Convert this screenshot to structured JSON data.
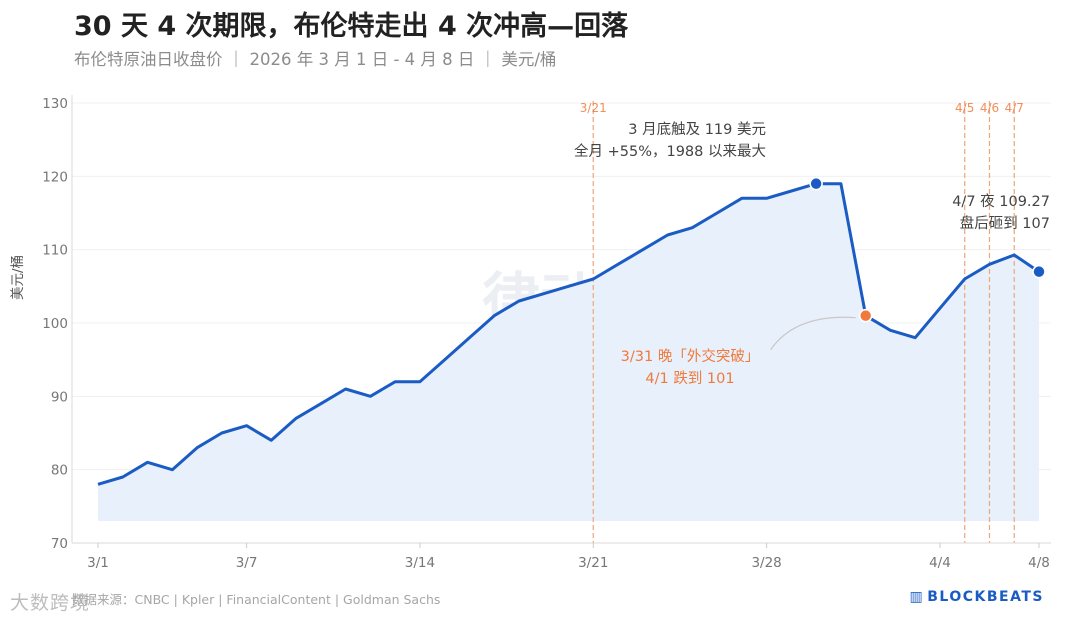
{
  "header": {
    "title": "30 天 4 次期限，布伦特走出 4 次冲高—回落",
    "subtitle": "布伦特原油日收盘价 ｜ 2026 年 3 月 1 日 - 4 月 8 日 ｜ 美元/桶"
  },
  "footer": {
    "source": "数据来源：CNBC | Kpler | FinancialContent | Goldman Sachs",
    "watermark": "大数跨境",
    "brand": "BLOCKBEATS"
  },
  "center_watermark": "律动",
  "colors": {
    "line": "#1a5cc4",
    "area": "#e8f0fb",
    "highlight": "#f07a3c",
    "deadline": "#f0a47a"
  },
  "chart_data": {
    "type": "area",
    "ylabel": "美元/桶",
    "ylim": [
      70,
      130
    ],
    "yticks": [
      70,
      80,
      90,
      100,
      110,
      120,
      130
    ],
    "xlim": [
      1,
      39
    ],
    "xticks": [
      {
        "day": 1,
        "label": "3/1"
      },
      {
        "day": 7,
        "label": "3/7"
      },
      {
        "day": 14,
        "label": "3/14"
      },
      {
        "day": 21,
        "label": "3/21"
      },
      {
        "day": 28,
        "label": "3/28"
      },
      {
        "day": 35,
        "label": "4/4"
      },
      {
        "day": 39,
        "label": "4/8"
      }
    ],
    "series": [
      {
        "x": [
          1,
          2,
          3,
          4,
          5,
          6,
          7,
          8,
          9,
          10,
          11,
          12,
          13,
          14,
          15,
          16,
          17,
          18,
          19,
          20,
          21,
          22,
          23,
          24,
          25,
          26,
          27,
          28,
          29,
          30,
          31,
          32,
          33,
          34,
          35,
          36,
          37,
          38,
          39
        ],
        "y": [
          78,
          79,
          81,
          80,
          83,
          85,
          86,
          84,
          87,
          89,
          91,
          90,
          92,
          92,
          95,
          98,
          101,
          103,
          104,
          105,
          106,
          108,
          110,
          112,
          113,
          115,
          117,
          117,
          118,
          119,
          119,
          101,
          99,
          98,
          102,
          106,
          108,
          109.27,
          107
        ]
      }
    ],
    "deadlines": [
      {
        "day": 21,
        "label": "3/21"
      },
      {
        "day": 36,
        "label": "4/5"
      },
      {
        "day": 37,
        "label": "4/6"
      },
      {
        "day": 38,
        "label": "4/7"
      }
    ],
    "highlight_points": [
      {
        "day": 30,
        "value": 119,
        "kind": "peak"
      },
      {
        "day": 32,
        "value": 101,
        "kind": "drop"
      },
      {
        "day": 39,
        "value": 107,
        "kind": "peak"
      }
    ],
    "annotations": [
      {
        "lines": [
          "3 月底触及 119 美元",
          "全月 +55%，1988 以来最大"
        ],
        "kind": "dark"
      },
      {
        "lines": [
          "4/7 夜 109.27",
          "盘后砸到 107"
        ],
        "kind": "dark"
      },
      {
        "lines": [
          "3/31 晚「外交突破」",
          "4/1 跌到 101"
        ],
        "kind": "orange"
      }
    ]
  }
}
